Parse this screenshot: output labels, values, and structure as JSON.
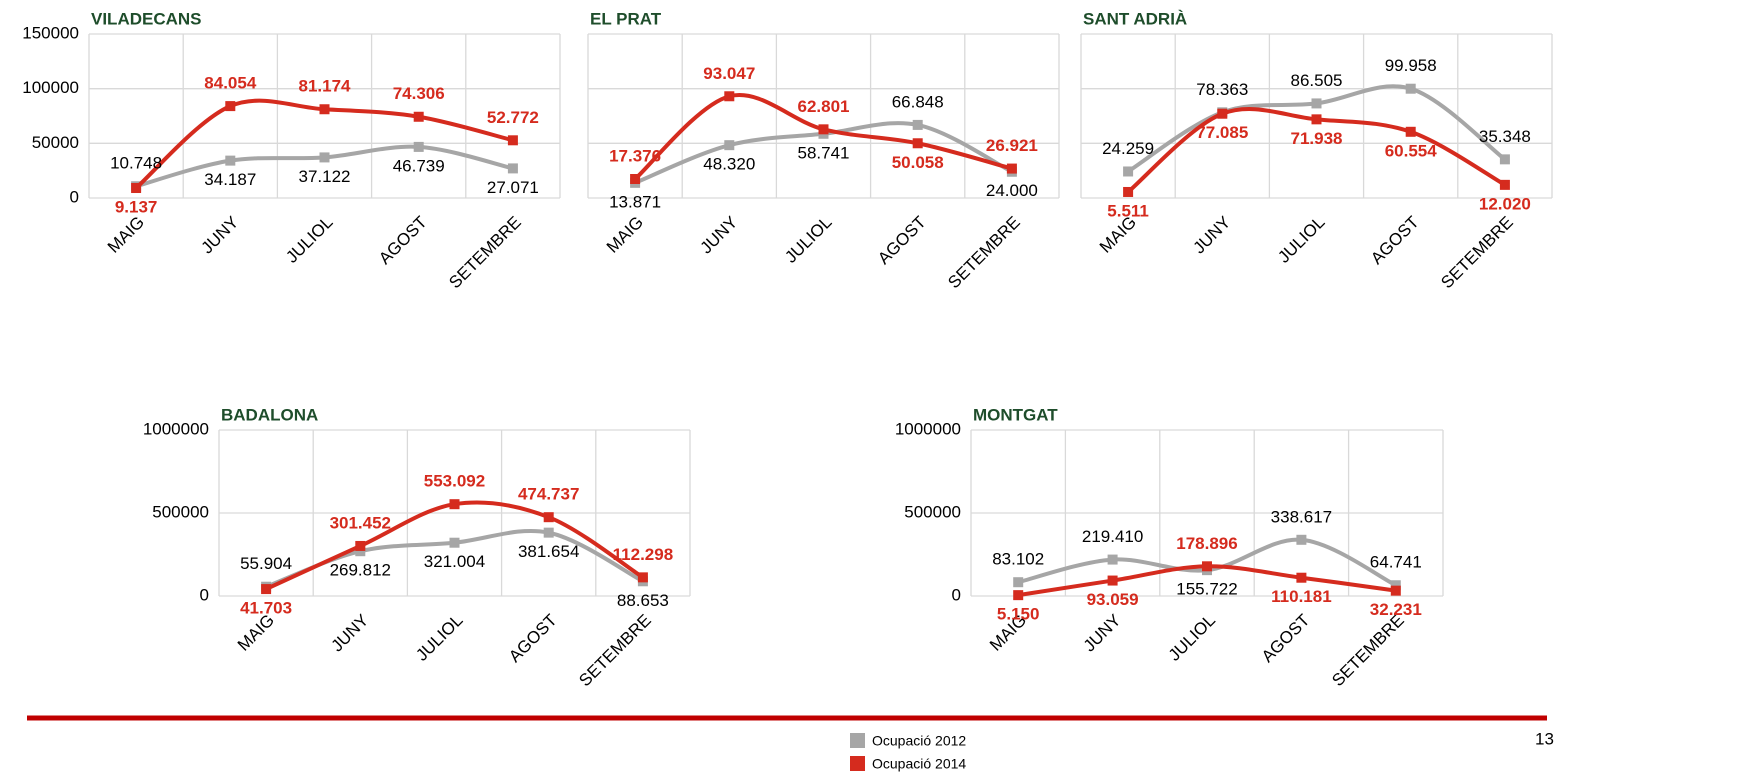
{
  "legend": [
    {
      "name": "Ocupació 2012",
      "color": "#a6a6a6"
    },
    {
      "name": "Ocupació 2014",
      "color": "#d52b1e"
    }
  ],
  "page_number": "13",
  "chart_data": [
    {
      "type": "line",
      "title": "VILADECANS",
      "categories": [
        "MAIG",
        "JUNY",
        "JULIOL",
        "AGOST",
        "SETEMBRE"
      ],
      "ylim": [
        0,
        150000
      ],
      "yticks": [
        0,
        50000,
        100000,
        150000
      ],
      "ytick_labels": true,
      "grid": true,
      "series": [
        {
          "values": [
            10748,
            34187,
            37122,
            46739,
            27071
          ],
          "value_labels": [
            "10.748",
            "34.187",
            "37.122",
            "46.739",
            "27.071"
          ]
        },
        {
          "values": [
            9137,
            84054,
            81174,
            74306,
            52772
          ],
          "value_labels": [
            "9.137",
            "84.054",
            "81.174",
            "74.306",
            "52.772"
          ]
        }
      ]
    },
    {
      "type": "line",
      "title": "EL PRAT",
      "categories": [
        "MAIG",
        "JUNY",
        "JULIOL",
        "AGOST",
        "SETEMBRE"
      ],
      "ylim": [
        0,
        150000
      ],
      "yticks": [
        0,
        50000,
        100000,
        150000
      ],
      "ytick_labels": false,
      "grid": true,
      "series": [
        {
          "values": [
            13871,
            48320,
            58741,
            66848,
            24000
          ],
          "value_labels": [
            "13.871",
            "48.320",
            "58.741",
            "66.848",
            "24.000"
          ]
        },
        {
          "values": [
            17376,
            93047,
            62801,
            50058,
            26921
          ],
          "value_labels": [
            "17.376",
            "93.047",
            "62.801",
            "50.058",
            "26.921"
          ]
        }
      ]
    },
    {
      "type": "line",
      "title": "SANT ADRIÀ",
      "categories": [
        "MAIG",
        "JUNY",
        "JULIOL",
        "AGOST",
        "SETEMBRE"
      ],
      "ylim": [
        0,
        150000
      ],
      "yticks": [
        0,
        50000,
        100000,
        150000
      ],
      "ytick_labels": false,
      "grid": true,
      "series": [
        {
          "values": [
            24259,
            78363,
            86505,
            99958,
            35348
          ],
          "value_labels": [
            "24.259",
            "78.363",
            "86.505",
            "99.958",
            "35.348"
          ]
        },
        {
          "values": [
            5511,
            77085,
            71938,
            60554,
            12020
          ],
          "value_labels": [
            "5.511",
            "77.085",
            "71.938",
            "60.554",
            "12.020"
          ]
        }
      ]
    },
    {
      "type": "line",
      "title": "BADALONA",
      "categories": [
        "MAIG",
        "JUNY",
        "JULIOL",
        "AGOST",
        "SETEMBRE"
      ],
      "ylim": [
        0,
        1000000
      ],
      "yticks": [
        0,
        500000,
        1000000
      ],
      "ytick_labels": true,
      "grid": true,
      "series": [
        {
          "values": [
            55904,
            269812,
            321004,
            381654,
            88653
          ],
          "value_labels": [
            "55.904",
            "269.812",
            "321.004",
            "381.654",
            "88.653"
          ]
        },
        {
          "values": [
            41703,
            301452,
            553092,
            474737,
            112298
          ],
          "value_labels": [
            "41.703",
            "301.452",
            "553.092",
            "474.737",
            "112.298"
          ]
        }
      ]
    },
    {
      "type": "line",
      "title": "MONTGAT",
      "categories": [
        "MAIG",
        "JUNY",
        "JULIOL",
        "AGOST",
        "SETEMBRE"
      ],
      "ylim": [
        0,
        1000000
      ],
      "yticks": [
        0,
        500000,
        1000000
      ],
      "ytick_labels": true,
      "grid": true,
      "series": [
        {
          "values": [
            83102,
            219410,
            155722,
            338617,
            64741
          ],
          "value_labels": [
            "83.102",
            "219.410",
            "155.722",
            "338.617",
            "64.741"
          ]
        },
        {
          "values": [
            5150,
            93059,
            178896,
            110181,
            32231
          ],
          "value_labels": [
            "5.150",
            "93.059",
            "178.896",
            "110.181",
            "32.231"
          ]
        }
      ]
    }
  ]
}
